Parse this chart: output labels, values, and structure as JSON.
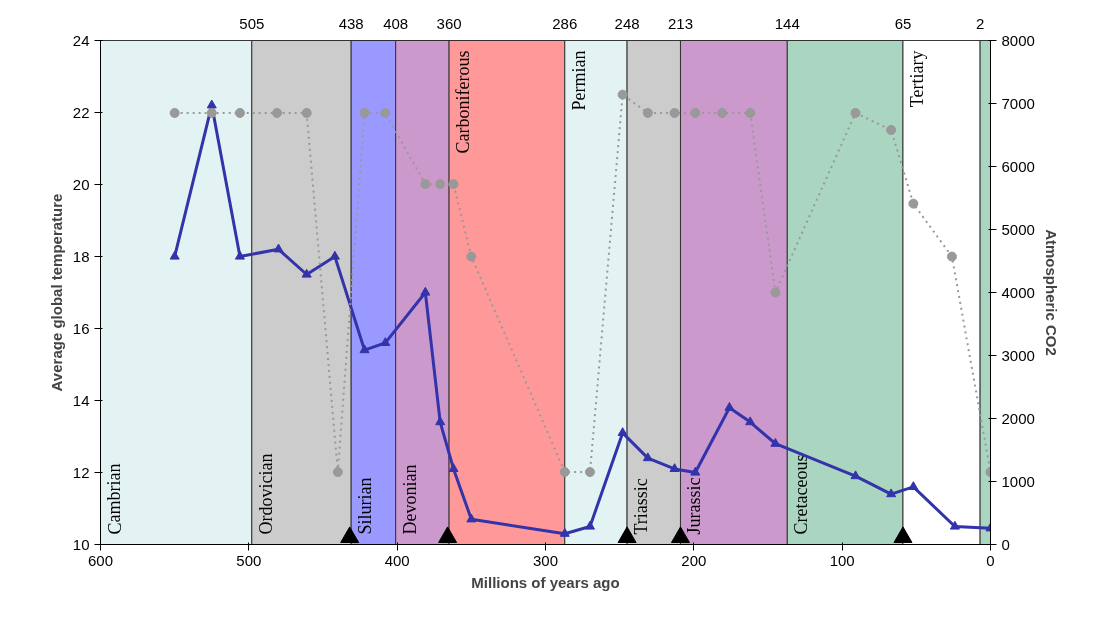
{
  "chart_data": {
    "type": "line",
    "xlabel": "Millions of years ago",
    "ylabel": "Average global temperature",
    "y2label": "Atmospheric CO2",
    "xlim": [
      600,
      0
    ],
    "xticks": [
      600,
      500,
      400,
      300,
      200,
      100,
      0
    ],
    "ylim": [
      10,
      24
    ],
    "yticks": [
      10,
      12,
      14,
      16,
      18,
      20,
      22,
      24
    ],
    "y2lim": [
      0,
      8000
    ],
    "y2ticks": [
      0,
      1000,
      2000,
      3000,
      4000,
      5000,
      6000,
      7000,
      8000
    ],
    "annotations": [
      {
        "text": "505",
        "x": 498,
        "y": 24
      },
      {
        "text": "438",
        "x": 431,
        "y": 24
      },
      {
        "text": "408",
        "x": 401,
        "y": 24
      },
      {
        "text": "360",
        "x": 365,
        "y": 24
      },
      {
        "text": "286",
        "x": 287,
        "y": 24
      },
      {
        "text": "248",
        "x": 245,
        "y": 24
      },
      {
        "text": "213",
        "x": 209,
        "y": 24
      },
      {
        "text": "144",
        "x": 137,
        "y": 24
      },
      {
        "text": "65",
        "x": 59,
        "y": 24
      },
      {
        "text": "2",
        "x": 7,
        "y": 24
      }
    ],
    "grid": false,
    "bands": [
      {
        "axis": "x",
        "from": 600,
        "to": 498,
        "label": "Cambrian",
        "color": "#e3f3f3"
      },
      {
        "axis": "x",
        "from": 498,
        "to": 431,
        "label": "Ordovician",
        "color": "#cccccc"
      },
      {
        "axis": "x",
        "from": 431,
        "to": 401,
        "label": "Silurian",
        "color": "#9999ff"
      },
      {
        "axis": "x",
        "from": 401,
        "to": 365,
        "label": "Devonian",
        "color": "#cc99cc"
      },
      {
        "axis": "x",
        "from": 365,
        "to": 287,
        "label": "Carboniferous",
        "color": "#ff9999"
      },
      {
        "axis": "x",
        "from": 287,
        "to": 245,
        "label": "Permian",
        "color": "#e3f3f3"
      },
      {
        "axis": "x",
        "from": 245,
        "to": 209,
        "label": "Triassic",
        "color": "#cccccc"
      },
      {
        "axis": "x",
        "from": 209,
        "to": 137,
        "label": "Jurassic",
        "color": "#cc99cc"
      },
      {
        "axis": "x",
        "from": 137,
        "to": 59,
        "label": "Cretaceous",
        "color": "#aad5c0"
      },
      {
        "axis": "x",
        "from": 59,
        "to": 7,
        "label": "Tertiary",
        "color": "#ffffff"
      },
      {
        "axis": "x",
        "from": 7,
        "to": 0,
        "label": null,
        "color": "#aad5c0"
      }
    ],
    "series": [
      {
        "type": "line",
        "color": "#3333aa",
        "marker": "triangle",
        "line_style": "solid",
        "x": [
          550,
          525,
          506,
          480,
          461,
          442,
          422,
          408,
          381,
          371,
          362,
          350,
          287,
          270,
          248,
          231,
          213,
          199,
          176,
          162,
          145,
          91,
          67,
          52,
          24,
          0
        ],
        "values": [
          18.0,
          22.2,
          18.0,
          18.2,
          17.5,
          18.0,
          15.4,
          15.6,
          17.0,
          13.4,
          12.1,
          10.7,
          10.3,
          10.5,
          13.1,
          12.4,
          12.1,
          12.0,
          13.8,
          13.4,
          12.8,
          11.9,
          11.4,
          11.6,
          10.5,
          10.45
        ]
      },
      {
        "type": "line",
        "axis": "y2",
        "color": "#999999",
        "marker": "circle",
        "line_style": "dotted",
        "x": [
          550,
          525,
          506,
          481,
          461,
          440,
          422,
          408,
          381,
          371,
          362,
          350,
          287,
          270,
          248,
          231,
          213,
          199,
          181,
          162,
          145,
          91,
          67,
          52,
          26,
          0
        ],
        "values": [
          6850,
          6850,
          6850,
          6850,
          6850,
          1150,
          6850,
          6850,
          5720,
          5720,
          5720,
          4570,
          1150,
          1150,
          7140,
          6850,
          6850,
          6850,
          6850,
          6850,
          4000,
          6850,
          6580,
          5410,
          4570,
          1150
        ]
      },
      {
        "type": "scatter",
        "color": "#000000",
        "marker": "triangle",
        "x": [
          432,
          366,
          245,
          209,
          59
        ],
        "values": [
          10.2,
          10.2,
          10.2,
          10.2,
          10.2
        ]
      }
    ]
  }
}
